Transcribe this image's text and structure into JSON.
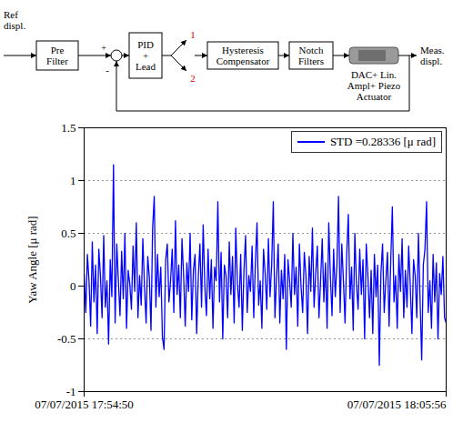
{
  "diagram": {
    "ref": [
      "Ref",
      "displ."
    ],
    "prefilter": [
      "Pre",
      "Filter"
    ],
    "plus": "+",
    "minus": "-",
    "pid": [
      "PID",
      "+",
      "Lead"
    ],
    "switch": [
      "1",
      "2"
    ],
    "hysteresis": [
      "Hysteresis",
      "Compensator"
    ],
    "notch": [
      "Notch",
      "Filters"
    ],
    "actuator": [
      "DAC+ Lin.",
      "Ampl+ Piezo",
      "Actuator"
    ],
    "output": [
      "Meas.",
      "displ."
    ]
  },
  "chart_data": {
    "type": "line",
    "ylabel": "Yaw Angle [μ rad]",
    "x": [
      "2015-07-07T17:54:50",
      "2015-07-07T17:54:53",
      "2015-07-07T17:54:56",
      "2015-07-07T17:54:59",
      "2015-07-07T17:55:02",
      "2015-07-07T17:55:05",
      "2015-07-07T17:55:08",
      "2015-07-07T17:55:11",
      "2015-07-07T17:55:14",
      "2015-07-07T17:55:17",
      "2015-07-07T17:55:20",
      "2015-07-07T17:55:23",
      "2015-07-07T17:55:26",
      "2015-07-07T17:55:29",
      "2015-07-07T17:55:32",
      "2015-07-07T17:55:35",
      "2015-07-07T17:55:38",
      "2015-07-07T17:55:41",
      "2015-07-07T17:55:44",
      "2015-07-07T17:55:47",
      "2015-07-07T17:55:50",
      "2015-07-07T17:55:53",
      "2015-07-07T17:55:56",
      "2015-07-07T17:55:59",
      "2015-07-07T17:56:02",
      "2015-07-07T17:56:05",
      "2015-07-07T17:56:08",
      "2015-07-07T17:56:11",
      "2015-07-07T17:56:14",
      "2015-07-07T17:56:17",
      "2015-07-07T17:56:20",
      "2015-07-07T17:56:23",
      "2015-07-07T17:56:26",
      "2015-07-07T17:56:29",
      "2015-07-07T17:56:32",
      "2015-07-07T17:56:35",
      "2015-07-07T17:56:38",
      "2015-07-07T17:56:41",
      "2015-07-07T17:56:44",
      "2015-07-07T17:56:47",
      "2015-07-07T17:56:50",
      "2015-07-07T17:56:53",
      "2015-07-07T17:56:56",
      "2015-07-07T17:56:59",
      "2015-07-07T17:57:02",
      "2015-07-07T17:57:05",
      "2015-07-07T17:57:08",
      "2015-07-07T17:57:11",
      "2015-07-07T17:57:14",
      "2015-07-07T17:57:17",
      "2015-07-07T17:57:20",
      "2015-07-07T17:57:23",
      "2015-07-07T17:57:26",
      "2015-07-07T17:57:29",
      "2015-07-07T17:57:32",
      "2015-07-07T17:57:35",
      "2015-07-07T17:57:38",
      "2015-07-07T17:57:41",
      "2015-07-07T17:57:44",
      "2015-07-07T17:57:47",
      "2015-07-07T17:57:50",
      "2015-07-07T17:57:53",
      "2015-07-07T17:57:56",
      "2015-07-07T17:57:59",
      "2015-07-07T17:58:02",
      "2015-07-07T17:58:05",
      "2015-07-07T17:58:08",
      "2015-07-07T17:58:11",
      "2015-07-07T17:58:14",
      "2015-07-07T17:58:17",
      "2015-07-07T17:58:20",
      "2015-07-07T17:58:23",
      "2015-07-07T17:58:26",
      "2015-07-07T17:58:29",
      "2015-07-07T17:58:32",
      "2015-07-07T17:58:35",
      "2015-07-07T17:58:38",
      "2015-07-07T17:58:41",
      "2015-07-07T17:58:44",
      "2015-07-07T17:58:47",
      "2015-07-07T17:58:50",
      "2015-07-07T17:58:53",
      "2015-07-07T17:58:56",
      "2015-07-07T17:58:59",
      "2015-07-07T17:59:02",
      "2015-07-07T17:59:05",
      "2015-07-07T17:59:08",
      "2015-07-07T17:59:11",
      "2015-07-07T17:59:14",
      "2015-07-07T17:59:17",
      "2015-07-07T17:59:20",
      "2015-07-07T17:59:23",
      "2015-07-07T17:59:26",
      "2015-07-07T17:59:29",
      "2015-07-07T17:59:32",
      "2015-07-07T17:59:35",
      "2015-07-07T17:59:38",
      "2015-07-07T17:59:41",
      "2015-07-07T17:59:44",
      "2015-07-07T17:59:47",
      "2015-07-07T17:59:50",
      "2015-07-07T17:59:53",
      "2015-07-07T17:59:56",
      "2015-07-07T17:59:59",
      "2015-07-07T18:00:02",
      "2015-07-07T18:00:05",
      "2015-07-07T18:00:08",
      "2015-07-07T18:00:11",
      "2015-07-07T18:00:14",
      "2015-07-07T18:00:17",
      "2015-07-07T18:00:20",
      "2015-07-07T18:00:23",
      "2015-07-07T18:00:26",
      "2015-07-07T18:00:29",
      "2015-07-07T18:00:32",
      "2015-07-07T18:00:35",
      "2015-07-07T18:00:38",
      "2015-07-07T18:00:41",
      "2015-07-07T18:00:44",
      "2015-07-07T18:00:47",
      "2015-07-07T18:00:50",
      "2015-07-07T18:00:53",
      "2015-07-07T18:00:56",
      "2015-07-07T18:00:59",
      "2015-07-07T18:01:02",
      "2015-07-07T18:01:05",
      "2015-07-07T18:01:08",
      "2015-07-07T18:01:11",
      "2015-07-07T18:01:14",
      "2015-07-07T18:01:17",
      "2015-07-07T18:01:20",
      "2015-07-07T18:01:23",
      "2015-07-07T18:01:26",
      "2015-07-07T18:01:29",
      "2015-07-07T18:01:32",
      "2015-07-07T18:01:35",
      "2015-07-07T18:01:38",
      "2015-07-07T18:01:41",
      "2015-07-07T18:01:44",
      "2015-07-07T18:01:47",
      "2015-07-07T18:01:50",
      "2015-07-07T18:01:53",
      "2015-07-07T18:01:56",
      "2015-07-07T18:01:59",
      "2015-07-07T18:02:02",
      "2015-07-07T18:02:05",
      "2015-07-07T18:02:08",
      "2015-07-07T18:02:11",
      "2015-07-07T18:02:14",
      "2015-07-07T18:02:17",
      "2015-07-07T18:02:20",
      "2015-07-07T18:02:23",
      "2015-07-07T18:02:26",
      "2015-07-07T18:02:29",
      "2015-07-07T18:02:32",
      "2015-07-07T18:02:35",
      "2015-07-07T18:02:38",
      "2015-07-07T18:02:41",
      "2015-07-07T18:02:44",
      "2015-07-07T18:02:47",
      "2015-07-07T18:02:50",
      "2015-07-07T18:02:53",
      "2015-07-07T18:02:56",
      "2015-07-07T18:02:59",
      "2015-07-07T18:03:02",
      "2015-07-07T18:03:05",
      "2015-07-07T18:03:08",
      "2015-07-07T18:03:11",
      "2015-07-07T18:03:14",
      "2015-07-07T18:03:17",
      "2015-07-07T18:03:20",
      "2015-07-07T18:03:23",
      "2015-07-07T18:03:26",
      "2015-07-07T18:03:29",
      "2015-07-07T18:03:32",
      "2015-07-07T18:03:35",
      "2015-07-07T18:03:38",
      "2015-07-07T18:03:41",
      "2015-07-07T18:03:44",
      "2015-07-07T18:03:47",
      "2015-07-07T18:03:50",
      "2015-07-07T18:03:53",
      "2015-07-07T18:03:56",
      "2015-07-07T18:03:59",
      "2015-07-07T18:04:02",
      "2015-07-07T18:04:05",
      "2015-07-07T18:04:08",
      "2015-07-07T18:04:11",
      "2015-07-07T18:04:14",
      "2015-07-07T18:04:17",
      "2015-07-07T18:04:20",
      "2015-07-07T18:04:23",
      "2015-07-07T18:04:26",
      "2015-07-07T18:04:29",
      "2015-07-07T18:04:32",
      "2015-07-07T18:04:35",
      "2015-07-07T18:04:38",
      "2015-07-07T18:04:41",
      "2015-07-07T18:04:44",
      "2015-07-07T18:04:47",
      "2015-07-07T18:04:50",
      "2015-07-07T18:04:53",
      "2015-07-07T18:04:56",
      "2015-07-07T18:04:59",
      "2015-07-07T18:05:02",
      "2015-07-07T18:05:05",
      "2015-07-07T18:05:08",
      "2015-07-07T18:05:11",
      "2015-07-07T18:05:14",
      "2015-07-07T18:05:17",
      "2015-07-07T18:05:20",
      "2015-07-07T18:05:23",
      "2015-07-07T18:05:26",
      "2015-07-07T18:05:29",
      "2015-07-07T18:05:32",
      "2015-07-07T18:05:35",
      "2015-07-07T18:05:38",
      "2015-07-07T18:05:41",
      "2015-07-07T18:05:44",
      "2015-07-07T18:05:47",
      "2015-07-07T18:05:50",
      "2015-07-07T18:05:53",
      "2015-07-07T18:05:56"
    ],
    "series": [
      {
        "name": "STD =0.28336 [μ rad]",
        "color": "#0000ff",
        "values": [
          0.12,
          -0.25,
          0.3,
          0.05,
          -0.38,
          0.42,
          -0.15,
          0.2,
          -0.45,
          0.35,
          0.1,
          -0.3,
          0.48,
          -0.2,
          0.05,
          -0.55,
          0.25,
          -0.1,
          1.15,
          -0.35,
          0.4,
          0.05,
          -0.28,
          0.33,
          -0.12,
          0.5,
          -0.4,
          0.15,
          0.02,
          -0.22,
          0.38,
          -0.05,
          0.6,
          -0.3,
          0.1,
          -0.18,
          0.45,
          0.0,
          -0.35,
          0.28,
          0.08,
          -0.42,
          0.55,
          0.85,
          -0.2,
          0.3,
          -0.1,
          0.18,
          -0.48,
          -0.6,
          0.25,
          0.4,
          -0.15,
          0.05,
          0.35,
          -0.25,
          0.62,
          -0.08,
          0.2,
          -0.3,
          0.45,
          0.1,
          -0.38,
          0.22,
          -0.05,
          0.5,
          -0.32,
          0.15,
          0.3,
          -0.45,
          0.08,
          0.4,
          -0.2,
          0.58,
          0.0,
          -0.28,
          0.35,
          -0.12,
          0.25,
          -0.4,
          0.18,
          0.05,
          0.8,
          -0.15,
          0.32,
          -0.5,
          0.2,
          0.1,
          -0.3,
          0.42,
          -0.08,
          0.28,
          -0.35,
          0.55,
          0.02,
          -0.2,
          0.3,
          -0.42,
          0.15,
          0.48,
          -0.25,
          0.1,
          -0.05,
          0.38,
          -0.3,
          0.22,
          0.6,
          -0.18,
          0.05,
          -0.4,
          0.35,
          0.12,
          -0.22,
          0.45,
          -0.1,
          0.2,
          0.8,
          -0.3,
          0.08,
          0.4,
          -0.35,
          0.15,
          -0.12,
          0.3,
          -0.6,
          0.25,
          0.05,
          -0.2,
          0.5,
          -0.08,
          0.18,
          -0.38,
          0.4,
          0.0,
          -0.25,
          0.32,
          0.1,
          -0.45,
          0.28,
          -0.05,
          0.55,
          -0.2,
          0.12,
          0.38,
          -0.3,
          0.05,
          0.45,
          -0.15,
          0.22,
          -0.4,
          0.6,
          0.1,
          -0.28,
          0.35,
          -0.1,
          0.2,
          0.85,
          -0.25,
          0.4,
          0.05,
          -0.35,
          0.3,
          0.68,
          -0.12,
          0.18,
          -0.42,
          0.5,
          0.02,
          -0.22,
          0.35,
          -0.08,
          0.25,
          -0.5,
          0.4,
          0.1,
          -0.3,
          0.15,
          -0.45,
          0.3,
          -0.1,
          0.2,
          -0.75,
          0.12,
          0.4,
          -0.25,
          0.05,
          0.32,
          -0.38,
          0.22,
          0.75,
          -0.15,
          0.1,
          -0.4,
          0.3,
          -0.05,
          0.45,
          -0.3,
          0.15,
          -0.2,
          0.38,
          0.0,
          -0.45,
          0.25,
          0.1,
          -0.3,
          0.5,
          -0.12,
          -0.7,
          0.2,
          0.35,
          0.8,
          -0.25,
          0.05,
          -0.4,
          0.3,
          -0.15,
          0.22,
          -0.5,
          0.12,
          -0.08,
          0.28,
          -0.3,
          -0.35
        ]
      }
    ],
    "xlim": [
      "2015-07-07T17:54:50",
      "2015-07-07T18:05:56"
    ],
    "xticks": [
      {
        "value": "2015-07-07T17:54:50",
        "label": "07/07/2015 17:54:50"
      },
      {
        "value": "2015-07-07T18:05:56",
        "label": "07/07/2015 18:05:56"
      }
    ],
    "ylim": [
      -1,
      1.5
    ],
    "yticks": [
      -1,
      -0.5,
      0,
      0.5,
      1,
      1.5
    ],
    "grid": true,
    "legend": "upper right"
  }
}
